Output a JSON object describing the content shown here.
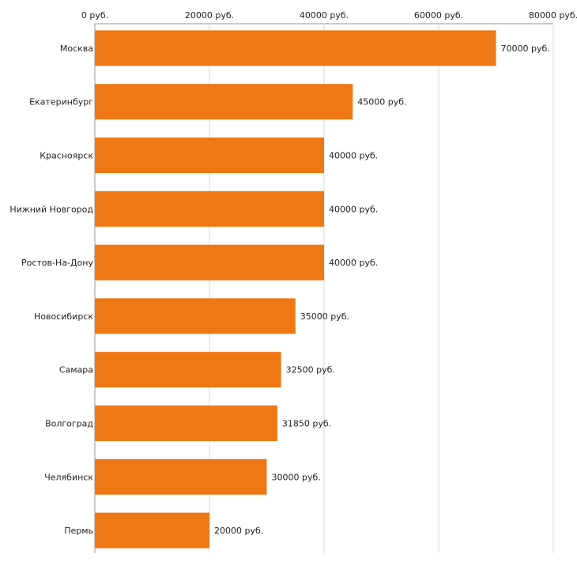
{
  "chart_data": {
    "type": "bar",
    "orientation": "horizontal",
    "categories": [
      "Москва",
      "Екатеринбург",
      "Красноярск",
      "Нижний Новгород",
      "Ростов-На-Дону",
      "Новосибирск",
      "Самара",
      "Волгоград",
      "Челябинск",
      "Пермь"
    ],
    "values": [
      70000,
      45000,
      40000,
      40000,
      40000,
      35000,
      32500,
      31850,
      30000,
      20000
    ],
    "value_labels": [
      "70000 руб.",
      "45000 руб.",
      "40000 руб.",
      "40000 руб.",
      "40000 руб.",
      "35000 руб.",
      "32500 руб.",
      "31850 руб.",
      "30000 руб.",
      "20000 руб."
    ],
    "ticks": [
      0,
      20000,
      40000,
      60000,
      80000
    ],
    "tick_labels": [
      "0 руб.",
      "20000 руб.",
      "40000 руб.",
      "60000 руб.",
      "80000 руб."
    ],
    "xlim": [
      0,
      80000
    ],
    "axis_position": "top",
    "grid": true,
    "bar_color": "#EE7814",
    "grid_color": "#D9D9D9"
  }
}
